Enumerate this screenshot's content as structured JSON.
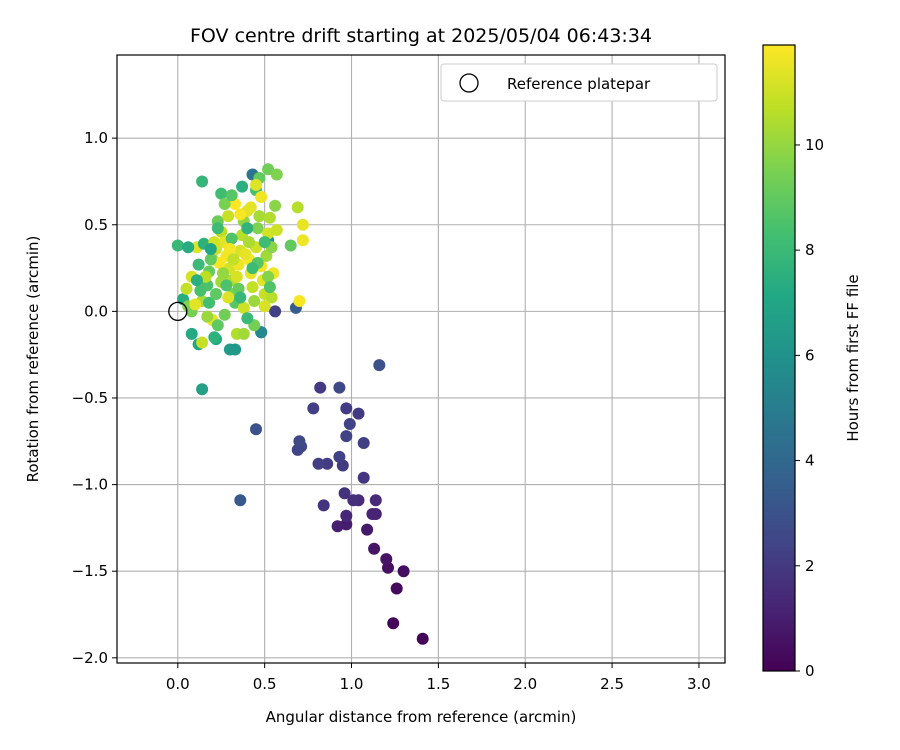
{
  "chart_data": {
    "type": "scatter",
    "title": "FOV centre drift starting at 2025/05/04 06:43:34",
    "xlabel": "Angular distance from reference (arcmin)",
    "ylabel": "Rotation from reference (arcmin)",
    "xlim": [
      -0.35,
      3.15
    ],
    "ylim": [
      -2.03,
      1.48
    ],
    "xticks": [
      0.0,
      0.5,
      1.0,
      1.5,
      2.0,
      2.5,
      3.0
    ],
    "xtick_labels": [
      "0.0",
      "0.5",
      "1.0",
      "1.5",
      "2.0",
      "2.5",
      "3.0"
    ],
    "yticks": [
      -2.0,
      -1.5,
      -1.0,
      -0.5,
      0.0,
      0.5,
      1.0
    ],
    "ytick_labels": [
      "−2.0",
      "−1.5",
      "−1.0",
      "−0.5",
      "0.0",
      "0.5",
      "1.0"
    ],
    "grid": true,
    "legend": {
      "placement": "top-right",
      "entries": [
        "Reference platepar"
      ]
    },
    "reference_point": {
      "x": 0.0,
      "y": 0.0
    },
    "colorbar": {
      "label": "Hours from first FF file",
      "colormap": "viridis",
      "range": [
        0,
        11.9
      ],
      "ticks": [
        0,
        2,
        4,
        6,
        8,
        10
      ],
      "tick_labels": [
        "0",
        "2",
        "4",
        "6",
        "8",
        "10"
      ]
    },
    "points": [
      {
        "x": 1.41,
        "y": -1.89,
        "h": 0.1
      },
      {
        "x": 1.24,
        "y": -1.8,
        "h": 0.2
      },
      {
        "x": 1.26,
        "y": -1.6,
        "h": 0.3
      },
      {
        "x": 1.3,
        "y": -1.5,
        "h": 0.4
      },
      {
        "x": 1.21,
        "y": -1.48,
        "h": 0.5
      },
      {
        "x": 1.2,
        "y": -1.43,
        "h": 0.6
      },
      {
        "x": 1.13,
        "y": -1.37,
        "h": 0.7
      },
      {
        "x": 1.09,
        "y": -1.26,
        "h": 0.8
      },
      {
        "x": 0.97,
        "y": -1.23,
        "h": 0.9
      },
      {
        "x": 0.92,
        "y": -1.24,
        "h": 1.0
      },
      {
        "x": 1.14,
        "y": -1.17,
        "h": 1.1
      },
      {
        "x": 1.12,
        "y": -1.17,
        "h": 1.2
      },
      {
        "x": 0.97,
        "y": -1.18,
        "h": 1.3
      },
      {
        "x": 1.14,
        "y": -1.09,
        "h": 1.4
      },
      {
        "x": 1.04,
        "y": -1.09,
        "h": 1.5
      },
      {
        "x": 1.01,
        "y": -1.09,
        "h": 1.6
      },
      {
        "x": 0.96,
        "y": -1.05,
        "h": 1.7
      },
      {
        "x": 0.84,
        "y": -1.12,
        "h": 1.8
      },
      {
        "x": 1.07,
        "y": -0.96,
        "h": 1.9
      },
      {
        "x": 0.95,
        "y": -0.89,
        "h": 2.0
      },
      {
        "x": 0.86,
        "y": -0.88,
        "h": 2.1
      },
      {
        "x": 0.81,
        "y": -0.88,
        "h": 2.2
      },
      {
        "x": 0.93,
        "y": -0.84,
        "h": 2.3
      },
      {
        "x": 0.69,
        "y": -0.8,
        "h": 2.4
      },
      {
        "x": 0.71,
        "y": -0.78,
        "h": 2.5
      },
      {
        "x": 0.7,
        "y": -0.75,
        "h": 2.6
      },
      {
        "x": 1.07,
        "y": -0.76,
        "h": 2.2
      },
      {
        "x": 0.97,
        "y": -0.72,
        "h": 2.3
      },
      {
        "x": 0.99,
        "y": -0.65,
        "h": 2.4
      },
      {
        "x": 1.04,
        "y": -0.59,
        "h": 2.0
      },
      {
        "x": 0.97,
        "y": -0.56,
        "h": 2.1
      },
      {
        "x": 0.78,
        "y": -0.56,
        "h": 2.2
      },
      {
        "x": 0.82,
        "y": -0.44,
        "h": 2.0
      },
      {
        "x": 0.93,
        "y": -0.44,
        "h": 2.6
      },
      {
        "x": 1.16,
        "y": -0.31,
        "h": 2.9
      },
      {
        "x": 0.45,
        "y": -0.68,
        "h": 3.0
      },
      {
        "x": 0.36,
        "y": -1.09,
        "h": 3.3
      },
      {
        "x": 0.68,
        "y": 0.02,
        "h": 3.5
      },
      {
        "x": 0.56,
        "y": 0.0,
        "h": 2.3
      },
      {
        "x": 0.43,
        "y": 0.79,
        "h": 4.5
      },
      {
        "x": 0.48,
        "y": -0.12,
        "h": 5.0
      },
      {
        "x": 0.48,
        "y": -0.12,
        "h": 5.5
      },
      {
        "x": 0.3,
        "y": -0.22,
        "h": 6.5
      },
      {
        "x": 0.33,
        "y": -0.22,
        "h": 6.3
      },
      {
        "x": 0.14,
        "y": -0.45,
        "h": 6.8
      },
      {
        "x": 0.12,
        "y": -0.19,
        "h": 6.9
      },
      {
        "x": 0.08,
        "y": -0.13,
        "h": 7.2
      },
      {
        "x": 0.22,
        "y": -0.16,
        "h": 7.1
      },
      {
        "x": 0.21,
        "y": -0.15,
        "h": 7.6
      },
      {
        "x": 0.52,
        "y": 0.41,
        "h": 5.8
      },
      {
        "x": 0.37,
        "y": 0.72,
        "h": 7.5
      },
      {
        "x": 0.14,
        "y": 0.75,
        "h": 7.8
      },
      {
        "x": 0.25,
        "y": 0.68,
        "h": 8.2
      },
      {
        "x": 0.45,
        "y": 0.7,
        "h": 8.4
      },
      {
        "x": 0.47,
        "y": 0.77,
        "h": 9.0
      },
      {
        "x": 0.52,
        "y": 0.82,
        "h": 9.3
      },
      {
        "x": 0.57,
        "y": 0.79,
        "h": 9.6
      },
      {
        "x": 0.56,
        "y": 0.61,
        "h": 9.8
      },
      {
        "x": 0.65,
        "y": 0.38,
        "h": 9.0
      },
      {
        "x": 0.69,
        "y": 0.6,
        "h": 10.6
      },
      {
        "x": 0.72,
        "y": 0.5,
        "h": 11.5
      },
      {
        "x": 0.72,
        "y": 0.41,
        "h": 11.6
      },
      {
        "x": 0.7,
        "y": 0.06,
        "h": 11.8
      },
      {
        "x": 0.34,
        "y": -0.13,
        "h": 10.5
      },
      {
        "x": 0.38,
        "y": -0.13,
        "h": 10.2
      },
      {
        "x": 0.0,
        "y": 0.38,
        "h": 7.9
      },
      {
        "x": 0.03,
        "y": 0.07,
        "h": 7.4
      },
      {
        "x": 0.05,
        "y": 0.13,
        "h": 10.8
      },
      {
        "x": 0.08,
        "y": 0.2,
        "h": 11.2
      },
      {
        "x": 0.06,
        "y": 0.03,
        "h": 9.7
      },
      {
        "x": 0.08,
        "y": 0.0,
        "h": 9.4
      },
      {
        "x": 0.14,
        "y": -0.18,
        "h": 10.9
      },
      {
        "x": 0.11,
        "y": 0.37,
        "h": 11.3
      },
      {
        "x": 0.14,
        "y": 0.06,
        "h": 10.3
      },
      {
        "x": 0.17,
        "y": 0.15,
        "h": 8.5
      },
      {
        "x": 0.18,
        "y": 0.23,
        "h": 9.1
      },
      {
        "x": 0.2,
        "y": 0.3,
        "h": 10.0
      },
      {
        "x": 0.22,
        "y": 0.36,
        "h": 11.0
      },
      {
        "x": 0.23,
        "y": 0.52,
        "h": 9.2
      },
      {
        "x": 0.25,
        "y": 0.46,
        "h": 10.7
      },
      {
        "x": 0.27,
        "y": 0.4,
        "h": 11.4
      },
      {
        "x": 0.28,
        "y": 0.32,
        "h": 11.7
      },
      {
        "x": 0.3,
        "y": 0.25,
        "h": 11.1
      },
      {
        "x": 0.31,
        "y": 0.18,
        "h": 10.4
      },
      {
        "x": 0.32,
        "y": 0.1,
        "h": 9.5
      },
      {
        "x": 0.33,
        "y": 0.05,
        "h": 8.8
      },
      {
        "x": 0.35,
        "y": 0.27,
        "h": 11.6
      },
      {
        "x": 0.36,
        "y": 0.35,
        "h": 11.2
      },
      {
        "x": 0.37,
        "y": 0.44,
        "h": 10.6
      },
      {
        "x": 0.38,
        "y": 0.52,
        "h": 9.9
      },
      {
        "x": 0.4,
        "y": 0.58,
        "h": 11.3
      },
      {
        "x": 0.41,
        "y": 0.3,
        "h": 11.8
      },
      {
        "x": 0.42,
        "y": 0.22,
        "h": 11.5
      },
      {
        "x": 0.43,
        "y": 0.14,
        "h": 10.8
      },
      {
        "x": 0.44,
        "y": 0.06,
        "h": 10.1
      },
      {
        "x": 0.45,
        "y": 0.37,
        "h": 11.0
      },
      {
        "x": 0.46,
        "y": 0.48,
        "h": 9.6
      },
      {
        "x": 0.47,
        "y": 0.55,
        "h": 10.3
      },
      {
        "x": 0.48,
        "y": 0.26,
        "h": 11.7
      },
      {
        "x": 0.49,
        "y": 0.18,
        "h": 11.4
      },
      {
        "x": 0.5,
        "y": 0.1,
        "h": 10.9
      },
      {
        "x": 0.51,
        "y": 0.32,
        "h": 10.2
      },
      {
        "x": 0.52,
        "y": 0.45,
        "h": 11.1
      },
      {
        "x": 0.53,
        "y": 0.54,
        "h": 10.5
      },
      {
        "x": 0.54,
        "y": 0.37,
        "h": 9.8
      },
      {
        "x": 0.55,
        "y": 0.22,
        "h": 11.6
      },
      {
        "x": 0.12,
        "y": 0.27,
        "h": 8.0
      },
      {
        "x": 0.15,
        "y": 0.39,
        "h": 7.6
      },
      {
        "x": 0.18,
        "y": 0.05,
        "h": 8.3
      },
      {
        "x": 0.2,
        "y": -0.05,
        "h": 11.5
      },
      {
        "x": 0.22,
        "y": 0.1,
        "h": 8.9
      },
      {
        "x": 0.25,
        "y": 0.17,
        "h": 10.2
      },
      {
        "x": 0.27,
        "y": -0.02,
        "h": 9.3
      },
      {
        "x": 0.29,
        "y": 0.08,
        "h": 11.3
      },
      {
        "x": 0.31,
        "y": 0.42,
        "h": 8.6
      },
      {
        "x": 0.33,
        "y": 0.62,
        "h": 11.9
      },
      {
        "x": 0.35,
        "y": 0.13,
        "h": 9.1
      },
      {
        "x": 0.38,
        "y": 0.02,
        "h": 11.0
      },
      {
        "x": 0.4,
        "y": 0.48,
        "h": 7.7
      },
      {
        "x": 0.42,
        "y": 0.6,
        "h": 11.4
      },
      {
        "x": 0.44,
        "y": -0.08,
        "h": 9.4
      },
      {
        "x": 0.46,
        "y": 0.28,
        "h": 8.7
      },
      {
        "x": 0.48,
        "y": 0.66,
        "h": 11.6
      },
      {
        "x": 0.5,
        "y": 0.4,
        "h": 8.2
      },
      {
        "x": 0.52,
        "y": 0.2,
        "h": 9.7
      },
      {
        "x": 0.54,
        "y": 0.08,
        "h": 10.6
      },
      {
        "x": 0.24,
        "y": 0.28,
        "h": 11.8
      },
      {
        "x": 0.26,
        "y": 0.22,
        "h": 10.0
      },
      {
        "x": 0.28,
        "y": 0.15,
        "h": 8.5
      },
      {
        "x": 0.3,
        "y": 0.36,
        "h": 11.7
      },
      {
        "x": 0.32,
        "y": 0.3,
        "h": 10.8
      },
      {
        "x": 0.34,
        "y": 0.2,
        "h": 11.2
      },
      {
        "x": 0.36,
        "y": 0.08,
        "h": 7.9
      },
      {
        "x": 0.39,
        "y": 0.33,
        "h": 11.5
      },
      {
        "x": 0.41,
        "y": 0.4,
        "h": 10.4
      },
      {
        "x": 0.43,
        "y": 0.25,
        "h": 8.1
      },
      {
        "x": 0.21,
        "y": 0.4,
        "h": 11.1
      },
      {
        "x": 0.19,
        "y": 0.3,
        "h": 9.0
      },
      {
        "x": 0.16,
        "y": 0.2,
        "h": 10.7
      },
      {
        "x": 0.13,
        "y": 0.12,
        "h": 8.4
      },
      {
        "x": 0.1,
        "y": 0.04,
        "h": 11.4
      },
      {
        "x": 0.17,
        "y": -0.03,
        "h": 10.1
      },
      {
        "x": 0.23,
        "y": -0.08,
        "h": 8.9
      },
      {
        "x": 0.29,
        "y": 0.55,
        "h": 10.9
      },
      {
        "x": 0.36,
        "y": 0.56,
        "h": 11.8
      },
      {
        "x": 0.27,
        "y": 0.62,
        "h": 9.5
      },
      {
        "x": 0.06,
        "y": 0.37,
        "h": 7.3
      },
      {
        "x": 0.19,
        "y": 0.36,
        "h": 7.0
      },
      {
        "x": 0.23,
        "y": 0.48,
        "h": 8.1
      },
      {
        "x": 0.11,
        "y": 0.18,
        "h": 7.5
      },
      {
        "x": 0.31,
        "y": 0.67,
        "h": 8.7
      },
      {
        "x": 0.45,
        "y": 0.73,
        "h": 11.3
      },
      {
        "x": 0.57,
        "y": 0.47,
        "h": 11.0
      },
      {
        "x": 0.4,
        "y": -0.04,
        "h": 8.0
      },
      {
        "x": 0.5,
        "y": 0.03,
        "h": 11.2
      },
      {
        "x": 0.53,
        "y": 0.14,
        "h": 8.6
      }
    ]
  }
}
